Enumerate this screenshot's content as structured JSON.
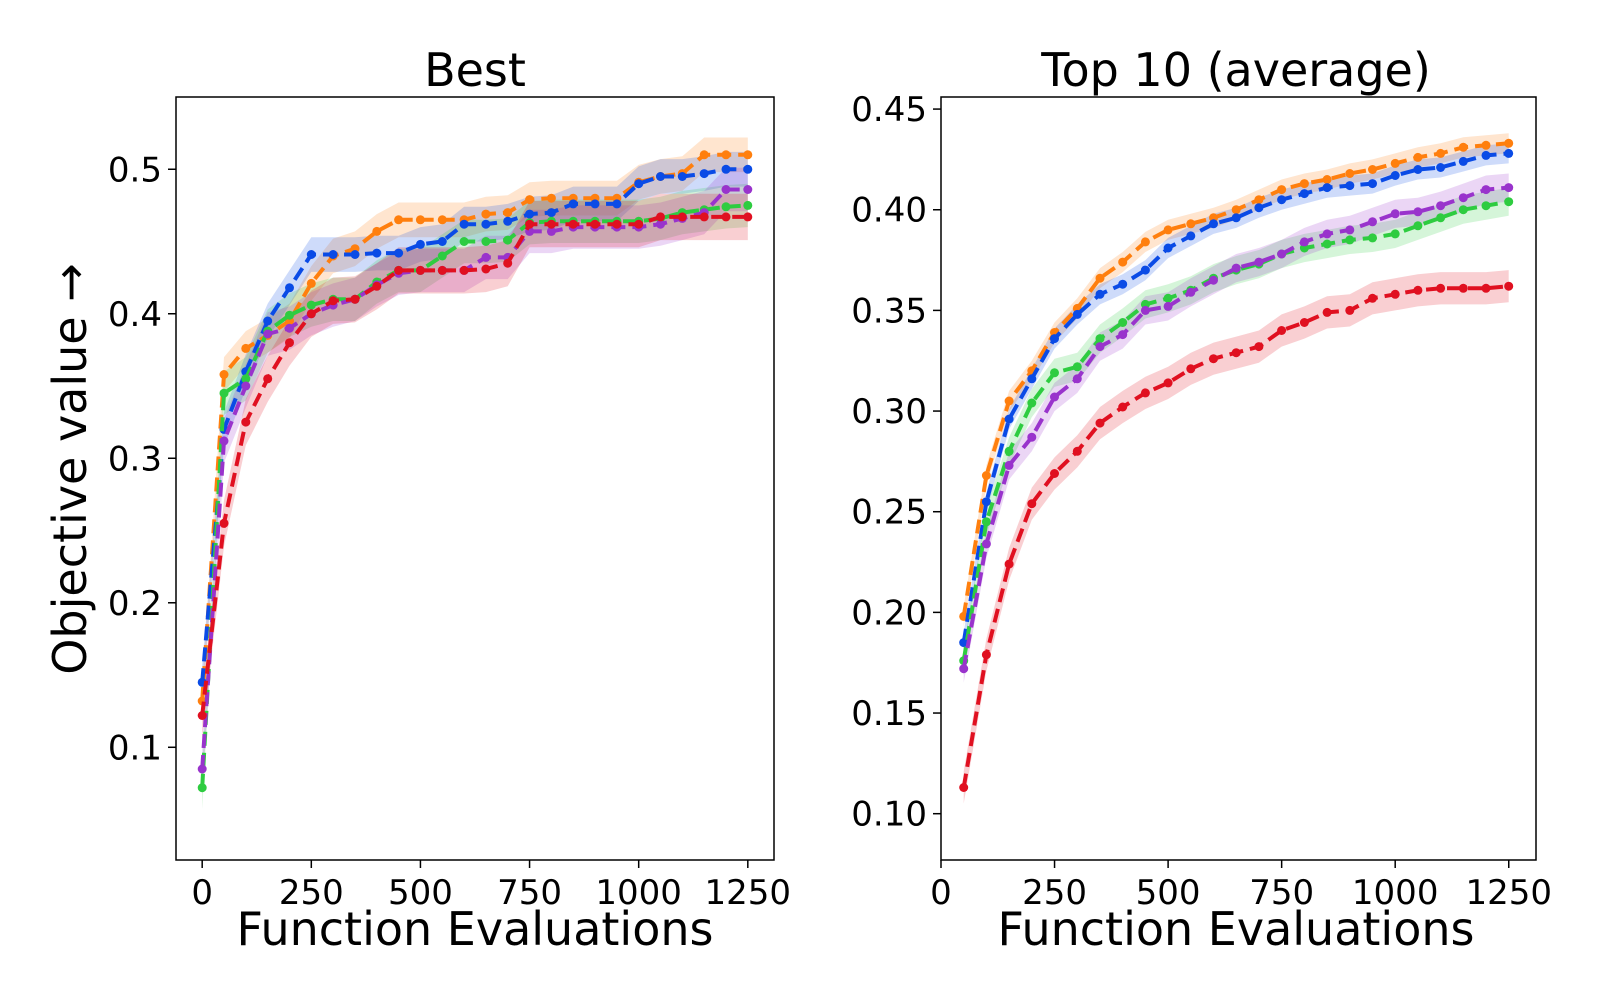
{
  "figure": {
    "ylabel": "Objective value →"
  },
  "chart_data": [
    {
      "type": "line",
      "title": "Best",
      "xlabel": "Function Evaluations",
      "ylabel": "Objective value →",
      "xlim": [
        -60,
        1310
      ],
      "ylim": [
        0.022,
        0.55
      ],
      "xticks": [
        0,
        250,
        500,
        750,
        1000,
        1250
      ],
      "yticks": [
        0.1,
        0.2,
        0.3,
        0.4,
        0.5
      ],
      "x": [
        0,
        50,
        100,
        150,
        200,
        250,
        300,
        350,
        400,
        450,
        500,
        550,
        600,
        650,
        700,
        750,
        800,
        850,
        900,
        950,
        1000,
        1050,
        1100,
        1150,
        1200,
        1250
      ],
      "series": [
        {
          "color": "#ff7f0e",
          "band": 0.012,
          "values": [
            0.132,
            0.358,
            0.376,
            0.385,
            0.395,
            0.421,
            0.44,
            0.445,
            0.457,
            0.465,
            0.465,
            0.465,
            0.465,
            0.469,
            0.47,
            0.479,
            0.48,
            0.48,
            0.48,
            0.48,
            0.491,
            0.495,
            0.497,
            0.51,
            0.51,
            0.51
          ]
        },
        {
          "color": "#0a4be6",
          "band": 0.012,
          "values": [
            0.145,
            0.32,
            0.36,
            0.395,
            0.418,
            0.441,
            0.441,
            0.441,
            0.442,
            0.442,
            0.448,
            0.45,
            0.462,
            0.462,
            0.464,
            0.469,
            0.47,
            0.476,
            0.476,
            0.476,
            0.49,
            0.495,
            0.495,
            0.497,
            0.5,
            0.5
          ]
        },
        {
          "color": "#2ecc40",
          "band": 0.015,
          "values": [
            0.072,
            0.345,
            0.355,
            0.388,
            0.399,
            0.406,
            0.41,
            0.41,
            0.422,
            0.43,
            0.43,
            0.44,
            0.45,
            0.45,
            0.451,
            0.463,
            0.464,
            0.464,
            0.464,
            0.464,
            0.464,
            0.466,
            0.47,
            0.472,
            0.474,
            0.475
          ]
        },
        {
          "color": "#9933cc",
          "band": 0.015,
          "values": [
            0.085,
            0.312,
            0.35,
            0.386,
            0.39,
            0.4,
            0.406,
            0.41,
            0.42,
            0.428,
            0.43,
            0.43,
            0.43,
            0.439,
            0.439,
            0.457,
            0.457,
            0.46,
            0.46,
            0.46,
            0.46,
            0.462,
            0.466,
            0.47,
            0.486,
            0.486
          ]
        },
        {
          "color": "#e01020",
          "band": 0.016,
          "values": [
            0.122,
            0.255,
            0.325,
            0.355,
            0.38,
            0.4,
            0.409,
            0.41,
            0.419,
            0.43,
            0.43,
            0.43,
            0.43,
            0.431,
            0.435,
            0.462,
            0.462,
            0.462,
            0.462,
            0.462,
            0.462,
            0.467,
            0.467,
            0.467,
            0.467,
            0.467
          ]
        }
      ]
    },
    {
      "type": "line",
      "title": "Top 10 (average)",
      "xlabel": "Function Evaluations",
      "ylabel": "",
      "xlim": [
        0,
        1310
      ],
      "ylim": [
        0.077,
        0.456
      ],
      "xticks": [
        0,
        250,
        500,
        750,
        1000,
        1250
      ],
      "yticks": [
        "0.10",
        "0.15",
        "0.20",
        "0.25",
        "0.30",
        "0.35",
        "0.40",
        "0.45"
      ],
      "x": [
        50,
        100,
        150,
        200,
        250,
        300,
        350,
        400,
        450,
        500,
        550,
        600,
        650,
        700,
        750,
        800,
        850,
        900,
        950,
        1000,
        1050,
        1100,
        1150,
        1200,
        1250
      ],
      "series": [
        {
          "color": "#ff7f0e",
          "band": 0.005,
          "values": [
            0.198,
            0.268,
            0.305,
            0.32,
            0.339,
            0.351,
            0.366,
            0.374,
            0.384,
            0.39,
            0.393,
            0.396,
            0.4,
            0.405,
            0.41,
            0.413,
            0.415,
            0.418,
            0.42,
            0.423,
            0.426,
            0.428,
            0.431,
            0.432,
            0.433
          ]
        },
        {
          "color": "#0a4be6",
          "band": 0.005,
          "values": [
            0.185,
            0.255,
            0.296,
            0.316,
            0.336,
            0.348,
            0.358,
            0.363,
            0.37,
            0.381,
            0.387,
            0.393,
            0.396,
            0.401,
            0.405,
            0.408,
            0.411,
            0.412,
            0.413,
            0.417,
            0.42,
            0.421,
            0.424,
            0.427,
            0.428
          ]
        },
        {
          "color": "#2ecc40",
          "band": 0.007,
          "values": [
            0.176,
            0.245,
            0.28,
            0.304,
            0.319,
            0.322,
            0.336,
            0.344,
            0.353,
            0.356,
            0.36,
            0.366,
            0.37,
            0.373,
            0.378,
            0.381,
            0.383,
            0.385,
            0.386,
            0.388,
            0.392,
            0.396,
            0.4,
            0.402,
            0.404
          ]
        },
        {
          "color": "#9933cc",
          "band": 0.007,
          "values": [
            0.172,
            0.234,
            0.273,
            0.287,
            0.307,
            0.316,
            0.332,
            0.338,
            0.35,
            0.352,
            0.359,
            0.365,
            0.371,
            0.374,
            0.378,
            0.384,
            0.388,
            0.39,
            0.394,
            0.398,
            0.399,
            0.402,
            0.406,
            0.41,
            0.411
          ]
        },
        {
          "color": "#e01020",
          "band": 0.008,
          "values": [
            0.113,
            0.179,
            0.224,
            0.254,
            0.269,
            0.28,
            0.294,
            0.302,
            0.309,
            0.314,
            0.321,
            0.326,
            0.329,
            0.332,
            0.34,
            0.344,
            0.349,
            0.35,
            0.356,
            0.358,
            0.36,
            0.361,
            0.361,
            0.361,
            0.362
          ]
        }
      ]
    }
  ]
}
